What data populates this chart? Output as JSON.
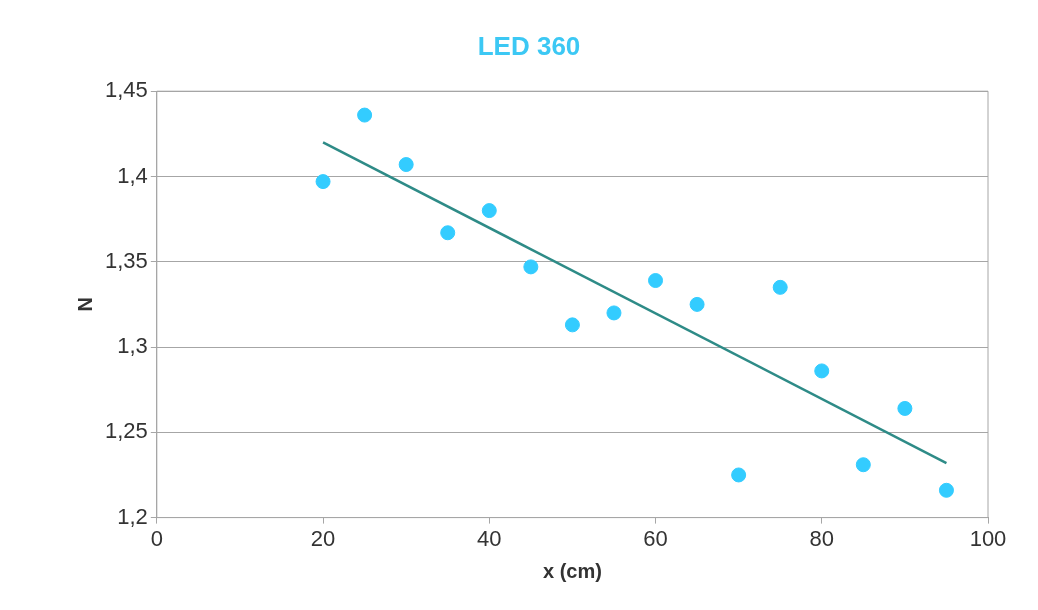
{
  "chart_data": {
    "type": "scatter",
    "title": "LED 360",
    "xlabel": "x (cm)",
    "ylabel": "N",
    "x": [
      20,
      25,
      30,
      35,
      40,
      45,
      50,
      55,
      60,
      65,
      70,
      75,
      80,
      85,
      90,
      95
    ],
    "series": [
      {
        "color": "#33ccff",
        "values": [
          1.397,
          1.436,
          1.407,
          1.367,
          1.38,
          1.347,
          1.313,
          1.32,
          1.339,
          1.325,
          1.225,
          1.335,
          1.286,
          1.231,
          1.264,
          1.216
        ]
      },
      {
        "type": "line",
        "color": "#2e8b87",
        "marker": "none",
        "x": [
          20,
          95
        ],
        "values": [
          1.42,
          1.232
        ]
      }
    ],
    "xlim": [
      0,
      100
    ],
    "xticks": [
      0,
      20,
      40,
      60,
      80,
      100
    ],
    "ylim": [
      1.2,
      1.45
    ],
    "yticks": [
      {
        "value": 1.2,
        "label": "1,2"
      },
      {
        "value": 1.25,
        "label": "1,25"
      },
      {
        "value": 1.3,
        "label": "1,3"
      },
      {
        "value": 1.35,
        "label": "1,35"
      },
      {
        "value": 1.4,
        "label": "1,4"
      },
      {
        "value": 1.45,
        "label": "1,45"
      }
    ],
    "grid": "y",
    "legend": false,
    "marker": "circle",
    "line_style": "solid"
  }
}
